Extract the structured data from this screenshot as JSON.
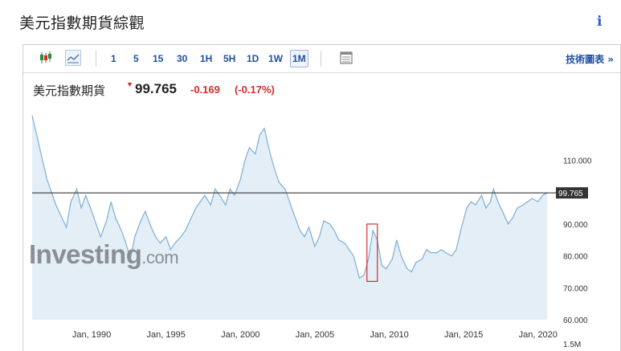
{
  "page": {
    "title": "美元指數期貨綜觀",
    "info_icon": "i"
  },
  "toolbar": {
    "timeframes": [
      "1",
      "5",
      "15",
      "30",
      "1H",
      "5H",
      "1D",
      "1W",
      "1M"
    ],
    "active_timeframe": "1M",
    "tech_chart_label": "技術圖表 »",
    "icons": [
      "candlestick-icon",
      "line-chart-icon",
      "table-icon"
    ]
  },
  "quote": {
    "name": "美元指數期貨",
    "direction_icon": "down-arrow-icon",
    "price": "99.765",
    "change": "-0.169",
    "change_pct": "(-0.17%)",
    "down_color": "#d62b2b"
  },
  "watermark": {
    "brand": "Investing",
    "suffix": ".com"
  },
  "chart_data": {
    "type": "area",
    "x_unit": "year",
    "x": [
      1986.0,
      1986.3,
      1986.6,
      1987.0,
      1987.3,
      1987.6,
      1988.0,
      1988.3,
      1988.6,
      1989.0,
      1989.3,
      1989.6,
      1990.0,
      1990.3,
      1990.6,
      1991.0,
      1991.3,
      1991.6,
      1992.0,
      1992.3,
      1992.6,
      1992.9,
      1993.3,
      1993.6,
      1994.0,
      1994.3,
      1994.6,
      1995.0,
      1995.3,
      1995.6,
      1996.0,
      1996.3,
      1996.6,
      1997.0,
      1997.3,
      1997.6,
      1998.0,
      1998.3,
      1998.6,
      1999.0,
      1999.3,
      1999.6,
      2000.0,
      2000.3,
      2000.6,
      2001.0,
      2001.3,
      2001.6,
      2002.0,
      2002.3,
      2002.6,
      2003.0,
      2003.3,
      2003.6,
      2004.0,
      2004.3,
      2004.6,
      2005.0,
      2005.3,
      2005.6,
      2006.0,
      2006.3,
      2006.6,
      2007.0,
      2007.3,
      2007.6,
      2008.0,
      2008.3,
      2008.6,
      2008.9,
      2009.2,
      2009.5,
      2009.8,
      2010.2,
      2010.5,
      2010.8,
      2011.2,
      2011.5,
      2011.8,
      2012.2,
      2012.5,
      2012.8,
      2013.2,
      2013.5,
      2013.8,
      2014.2,
      2014.5,
      2014.8,
      2015.2,
      2015.5,
      2015.8,
      2016.2,
      2016.5,
      2016.8,
      2017.0,
      2017.3,
      2017.6,
      2018.0,
      2018.3,
      2018.6,
      2019.0,
      2019.3,
      2019.6,
      2020.0,
      2020.3,
      2020.6
    ],
    "y": [
      124,
      118,
      112,
      104,
      100,
      96,
      92,
      89,
      97,
      101,
      95,
      99,
      94,
      90,
      86,
      91,
      97,
      92,
      88,
      84,
      79,
      86,
      91,
      94,
      89,
      86,
      84,
      86,
      82,
      84,
      86,
      88,
      91,
      95,
      97,
      99,
      96,
      101,
      99,
      96,
      101,
      99,
      104,
      110,
      114,
      112,
      118,
      120,
      112,
      107,
      103,
      101,
      97,
      93,
      88,
      86,
      89,
      83,
      86,
      91,
      90,
      88,
      85,
      84,
      82,
      80,
      73,
      74,
      79,
      88,
      85,
      77,
      76,
      79,
      85,
      80,
      76,
      75,
      78,
      79,
      82,
      81,
      81,
      82,
      81,
      80,
      82,
      88,
      95,
      97,
      96,
      99,
      95,
      97,
      101,
      97,
      94,
      90,
      92,
      95,
      96,
      97,
      98,
      97,
      99,
      99.765
    ],
    "ylim": [
      60,
      125
    ],
    "y_ticks": [
      "110.000",
      "90.000",
      "80.000",
      "70.000",
      "60.000"
    ],
    "y_tick_values": [
      110,
      90,
      80,
      70,
      60
    ],
    "x_ticks": [
      "Jan, 1990",
      "Jan, 1995",
      "Jan, 2000",
      "Jan, 2005",
      "Jan, 2010",
      "Jan, 2015",
      "Jan, 2020"
    ],
    "x_tick_values": [
      1990,
      1995,
      2000,
      2005,
      2010,
      2015,
      2020
    ],
    "xlim": [
      1986,
      2021.2
    ],
    "current_value": 99.765,
    "current_label": "99.765",
    "volume_label": "1.5M",
    "highlight_box": {
      "x_start": 2008.5,
      "x_end": 2009.2,
      "y_low": 72,
      "y_high": 90
    },
    "line_color": "#7eaed6",
    "fill_color": "#e3eef7",
    "reference_line_color": "#222222",
    "highlight_color": "#d62b2b"
  }
}
